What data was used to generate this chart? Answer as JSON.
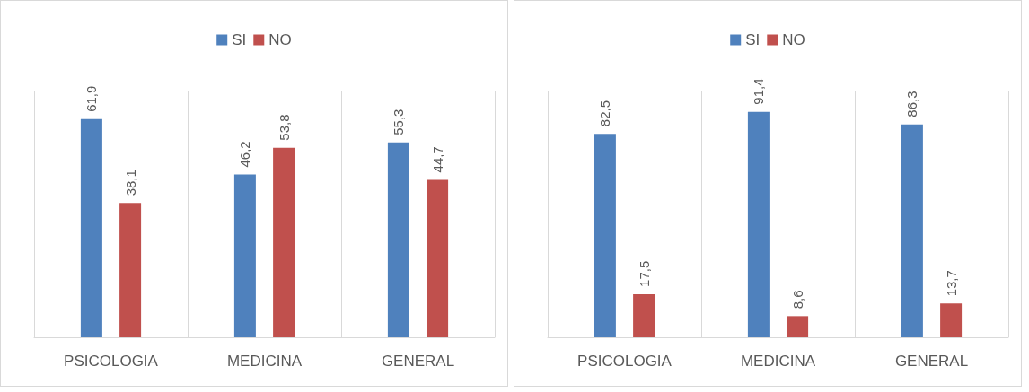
{
  "chart_data": [
    {
      "type": "bar",
      "categories": [
        "PSICOLOGIA",
        "MEDICINA",
        "GENERAL"
      ],
      "legend": "top",
      "grid": "x",
      "series": [
        {
          "name": "SI",
          "color": "#4f81bd",
          "values": [
            61.9,
            46.2,
            55.3
          ],
          "value_labels": [
            "61,9",
            "46,2",
            "55,3"
          ]
        },
        {
          "name": "NO",
          "color": "#c0504d",
          "values": [
            38.1,
            53.8,
            44.7
          ],
          "value_labels": [
            "38,1",
            "53,8",
            "44,7"
          ]
        }
      ]
    },
    {
      "type": "bar",
      "categories": [
        "PSICOLOGIA",
        "MEDICINA",
        "GENERAL"
      ],
      "legend": "top",
      "grid": "x",
      "series": [
        {
          "name": "SI",
          "color": "#4f81bd",
          "values": [
            82.5,
            91.4,
            86.3
          ],
          "value_labels": [
            "82,5",
            "91,4",
            "86,3"
          ]
        },
        {
          "name": "NO",
          "color": "#c0504d",
          "values": [
            17.5,
            8.6,
            13.7
          ],
          "value_labels": [
            "17,5",
            "8,6",
            "13,7"
          ]
        }
      ]
    }
  ]
}
